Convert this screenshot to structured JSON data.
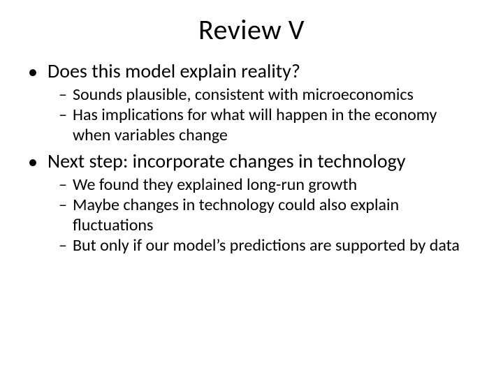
{
  "title": "Review V",
  "bullets": [
    {
      "text": "Does this model explain reality?",
      "sub": [
        "Sounds plausible, consistent with microeconomics",
        "Has implications for what will happen in the economy when variables change"
      ]
    },
    {
      "text": "Next step: incorporate changes in technology",
      "sub": [
        "We found they explained long-run growth",
        "Maybe changes in technology could also explain fluctuations",
        "But only if our model’s predictions are supported by data"
      ]
    }
  ],
  "style": {
    "background_color": "#ffffff",
    "text_color": "#000000",
    "title_fontsize": 40,
    "l1_fontsize": 28,
    "l2_fontsize": 24,
    "font_family": "Calibri",
    "l1_marker": "•",
    "l2_marker": "–"
  }
}
